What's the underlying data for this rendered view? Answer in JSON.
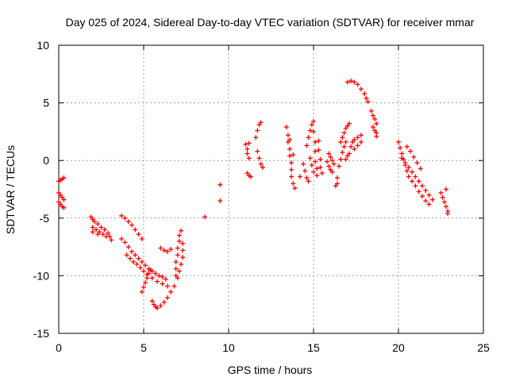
{
  "chart_data": {
    "type": "scatter",
    "title": "Day 025 of 2024, Sidereal Day-to-day VTEC variation (SDTVAR) for receiver mmar",
    "xlabel": "GPS time / hours",
    "ylabel": "SDTVAR / TECUs",
    "xlim": [
      0,
      25
    ],
    "ylim": [
      -15,
      10
    ],
    "xticks": [
      0,
      5,
      10,
      15,
      20,
      25
    ],
    "yticks": [
      -15,
      -10,
      -5,
      0,
      5,
      10
    ],
    "grid": true,
    "marker": "+",
    "color": "#ff0000",
    "series": [
      {
        "name": "t0",
        "points": [
          [
            0.0,
            -1.8
          ],
          [
            0.1,
            -1.7
          ],
          [
            0.2,
            -1.6
          ],
          [
            0.3,
            -1.5
          ],
          [
            0.0,
            -2.8
          ],
          [
            0.1,
            -3.0
          ],
          [
            0.2,
            -3.2
          ],
          [
            0.3,
            -3.4
          ],
          [
            0.0,
            -3.6
          ],
          [
            0.1,
            -3.8
          ],
          [
            0.2,
            -4.0
          ],
          [
            0.3,
            -4.1
          ]
        ]
      },
      {
        "name": "t1",
        "points": [
          [
            1.9,
            -4.9
          ],
          [
            2.0,
            -5.1
          ],
          [
            2.1,
            -5.3
          ],
          [
            2.3,
            -5.5
          ],
          [
            2.5,
            -5.8
          ],
          [
            2.7,
            -6.0
          ],
          [
            2.9,
            -6.3
          ],
          [
            3.0,
            -6.6
          ],
          [
            3.1,
            -6.9
          ],
          [
            2.0,
            -5.8
          ],
          [
            2.2,
            -6.0
          ],
          [
            2.4,
            -6.2
          ],
          [
            2.6,
            -6.4
          ],
          [
            2.8,
            -6.6
          ],
          [
            2.0,
            -6.2
          ],
          [
            2.3,
            -6.4
          ]
        ]
      },
      {
        "name": "t2",
        "points": [
          [
            3.7,
            -4.8
          ],
          [
            3.9,
            -5.0
          ],
          [
            4.1,
            -5.3
          ],
          [
            4.3,
            -5.6
          ],
          [
            4.5,
            -6.0
          ],
          [
            4.7,
            -6.4
          ],
          [
            4.9,
            -6.8
          ],
          [
            3.7,
            -6.8
          ],
          [
            3.9,
            -7.1
          ],
          [
            4.1,
            -7.5
          ],
          [
            4.3,
            -7.9
          ],
          [
            4.5,
            -8.2
          ],
          [
            4.7,
            -8.5
          ],
          [
            4.9,
            -8.8
          ],
          [
            5.1,
            -9.1
          ],
          [
            5.3,
            -9.4
          ],
          [
            5.5,
            -9.6
          ],
          [
            5.7,
            -9.8
          ],
          [
            5.9,
            -10.0
          ],
          [
            6.1,
            -10.1
          ],
          [
            6.3,
            -10.3
          ],
          [
            4.0,
            -8.2
          ],
          [
            4.2,
            -8.5
          ],
          [
            4.4,
            -8.8
          ],
          [
            4.6,
            -9.0
          ],
          [
            4.8,
            -9.3
          ],
          [
            5.0,
            -9.6
          ],
          [
            5.2,
            -9.9
          ],
          [
            5.5,
            -10.2
          ],
          [
            5.8,
            -10.5
          ],
          [
            6.1,
            -10.7
          ],
          [
            6.4,
            -10.9
          ]
        ]
      },
      {
        "name": "t3",
        "points": [
          [
            4.9,
            -11.4
          ],
          [
            5.0,
            -11.0
          ],
          [
            5.1,
            -10.6
          ],
          [
            5.2,
            -10.2
          ],
          [
            5.3,
            -9.8
          ],
          [
            5.4,
            -9.5
          ],
          [
            5.5,
            -12.2
          ],
          [
            5.6,
            -12.5
          ],
          [
            5.7,
            -12.7
          ],
          [
            5.8,
            -12.8
          ],
          [
            6.0,
            -12.6
          ],
          [
            6.2,
            -12.3
          ],
          [
            6.4,
            -11.9
          ],
          [
            6.6,
            -11.4
          ],
          [
            6.8,
            -10.9
          ],
          [
            6.0,
            -7.6
          ],
          [
            6.2,
            -7.8
          ],
          [
            6.4,
            -7.9
          ],
          [
            6.6,
            -7.7
          ]
        ]
      },
      {
        "name": "t4",
        "points": [
          [
            6.9,
            -10.0
          ],
          [
            6.9,
            -9.4
          ],
          [
            6.9,
            -8.8
          ],
          [
            7.0,
            -8.2
          ],
          [
            7.0,
            -7.6
          ],
          [
            7.1,
            -7.0
          ],
          [
            7.1,
            -6.5
          ],
          [
            7.2,
            -6.1
          ],
          [
            7.0,
            -10.2
          ],
          [
            7.1,
            -9.6
          ],
          [
            7.2,
            -9.0
          ],
          [
            7.3,
            -8.4
          ],
          [
            7.3,
            -7.8
          ],
          [
            7.3,
            -7.2
          ]
        ]
      },
      {
        "name": "t5",
        "points": [
          [
            8.6,
            -4.9
          ],
          [
            9.5,
            -3.5
          ],
          [
            9.5,
            -2.1
          ]
        ]
      },
      {
        "name": "t6",
        "points": [
          [
            11.0,
            1.4
          ],
          [
            11.1,
            1.0
          ],
          [
            11.1,
            0.6
          ],
          [
            11.2,
            0.2
          ],
          [
            11.2,
            1.5
          ],
          [
            11.1,
            -1.1
          ],
          [
            11.2,
            -1.3
          ],
          [
            11.3,
            -1.4
          ],
          [
            11.6,
            2.0
          ],
          [
            11.7,
            2.6
          ],
          [
            11.8,
            3.1
          ],
          [
            11.9,
            3.3
          ],
          [
            11.7,
            0.8
          ],
          [
            11.8,
            0.2
          ],
          [
            11.9,
            -0.3
          ],
          [
            12.0,
            -0.6
          ]
        ]
      },
      {
        "name": "t7",
        "points": [
          [
            13.4,
            2.9
          ],
          [
            13.5,
            2.2
          ],
          [
            13.5,
            1.6
          ],
          [
            13.6,
            1.0
          ],
          [
            13.6,
            0.4
          ],
          [
            13.7,
            -0.2
          ],
          [
            13.7,
            -0.8
          ],
          [
            13.7,
            -1.4
          ],
          [
            13.8,
            -2.0
          ],
          [
            13.9,
            -2.4
          ],
          [
            13.6,
            1.8
          ],
          [
            13.8,
            0.5
          ],
          [
            14.2,
            -1.4
          ],
          [
            14.4,
            -0.3
          ],
          [
            14.5,
            -0.9
          ],
          [
            14.6,
            -1.5
          ],
          [
            14.7,
            -1.8
          ],
          [
            14.6,
            1.3
          ],
          [
            14.7,
            2.0
          ],
          [
            14.8,
            2.6
          ],
          [
            14.9,
            3.1
          ],
          [
            15.0,
            3.4
          ],
          [
            15.0,
            2.5
          ],
          [
            15.1,
            1.6
          ],
          [
            15.1,
            0.8
          ],
          [
            15.1,
            -0.1
          ],
          [
            15.2,
            -0.7
          ],
          [
            15.2,
            -1.3
          ],
          [
            14.8,
            0.2
          ],
          [
            14.9,
            -0.4
          ],
          [
            15.0,
            -1.0
          ],
          [
            15.3,
            1.7
          ],
          [
            15.3,
            0.9
          ],
          [
            15.4,
            0.1
          ],
          [
            15.4,
            -0.6
          ],
          [
            15.5,
            -1.1
          ]
        ]
      },
      {
        "name": "t8",
        "points": [
          [
            15.8,
            -0.1
          ],
          [
            15.9,
            -0.5
          ],
          [
            16.0,
            -0.8
          ],
          [
            16.1,
            -1.0
          ],
          [
            15.9,
            0.6
          ],
          [
            16.0,
            0.3
          ],
          [
            16.1,
            0.0
          ],
          [
            16.2,
            -0.3
          ],
          [
            16.3,
            -2.2
          ],
          [
            16.4,
            -2.0
          ],
          [
            16.4,
            -1.5
          ],
          [
            16.5,
            -0.5
          ],
          [
            16.6,
            0.1
          ],
          [
            16.7,
            0.7
          ],
          [
            16.8,
            1.2
          ],
          [
            16.9,
            1.6
          ],
          [
            16.6,
            1.6
          ],
          [
            16.7,
            2.0
          ],
          [
            16.8,
            2.4
          ],
          [
            16.9,
            2.8
          ],
          [
            17.0,
            3.0
          ],
          [
            17.1,
            3.2
          ],
          [
            16.9,
            0.1
          ],
          [
            17.0,
            0.4
          ],
          [
            17.1,
            0.6
          ],
          [
            17.2,
            1.2
          ],
          [
            17.3,
            1.6
          ],
          [
            17.4,
            1.8
          ],
          [
            17.6,
            2.0
          ],
          [
            17.8,
            2.2
          ],
          [
            17.4,
            1.0
          ],
          [
            17.6,
            1.3
          ],
          [
            17.8,
            1.6
          ]
        ]
      },
      {
        "name": "t9",
        "points": [
          [
            17.0,
            6.8
          ],
          [
            17.2,
            6.9
          ],
          [
            17.4,
            6.8
          ],
          [
            17.6,
            6.6
          ],
          [
            17.8,
            6.2
          ],
          [
            18.0,
            5.8
          ],
          [
            18.1,
            5.4
          ],
          [
            18.2,
            5.1
          ]
        ]
      },
      {
        "name": "t10",
        "points": [
          [
            18.4,
            4.3
          ],
          [
            18.5,
            3.9
          ],
          [
            18.6,
            3.6
          ],
          [
            18.7,
            3.2
          ],
          [
            18.5,
            2.9
          ],
          [
            18.6,
            2.6
          ],
          [
            18.7,
            2.4
          ],
          [
            18.7,
            2.1
          ]
        ]
      },
      {
        "name": "t11",
        "points": [
          [
            20.0,
            1.6
          ],
          [
            20.1,
            1.1
          ],
          [
            20.2,
            0.6
          ],
          [
            20.3,
            0.1
          ],
          [
            20.4,
            -0.4
          ],
          [
            20.5,
            -0.9
          ],
          [
            20.6,
            -1.4
          ],
          [
            20.8,
            -1.8
          ],
          [
            21.0,
            -2.2
          ],
          [
            21.2,
            -2.7
          ],
          [
            21.4,
            -3.1
          ],
          [
            21.6,
            -3.5
          ],
          [
            21.8,
            -3.8
          ],
          [
            20.2,
            0.2
          ],
          [
            20.4,
            -0.2
          ],
          [
            20.6,
            -0.6
          ],
          [
            20.8,
            -1.0
          ],
          [
            21.0,
            -1.4
          ],
          [
            21.2,
            -1.8
          ],
          [
            21.4,
            -2.2
          ],
          [
            21.6,
            -2.6
          ],
          [
            21.8,
            -3.0
          ],
          [
            22.0,
            -3.4
          ],
          [
            20.5,
            1.2
          ],
          [
            20.7,
            0.8
          ],
          [
            20.9,
            0.3
          ],
          [
            21.1,
            -0.2
          ],
          [
            21.3,
            -0.7
          ]
        ]
      },
      {
        "name": "t12",
        "points": [
          [
            22.5,
            -2.8
          ],
          [
            22.6,
            -3.2
          ],
          [
            22.7,
            -3.6
          ],
          [
            22.8,
            -2.5
          ],
          [
            22.8,
            -4.0
          ],
          [
            22.9,
            -4.4
          ],
          [
            22.9,
            -4.6
          ]
        ]
      }
    ]
  }
}
